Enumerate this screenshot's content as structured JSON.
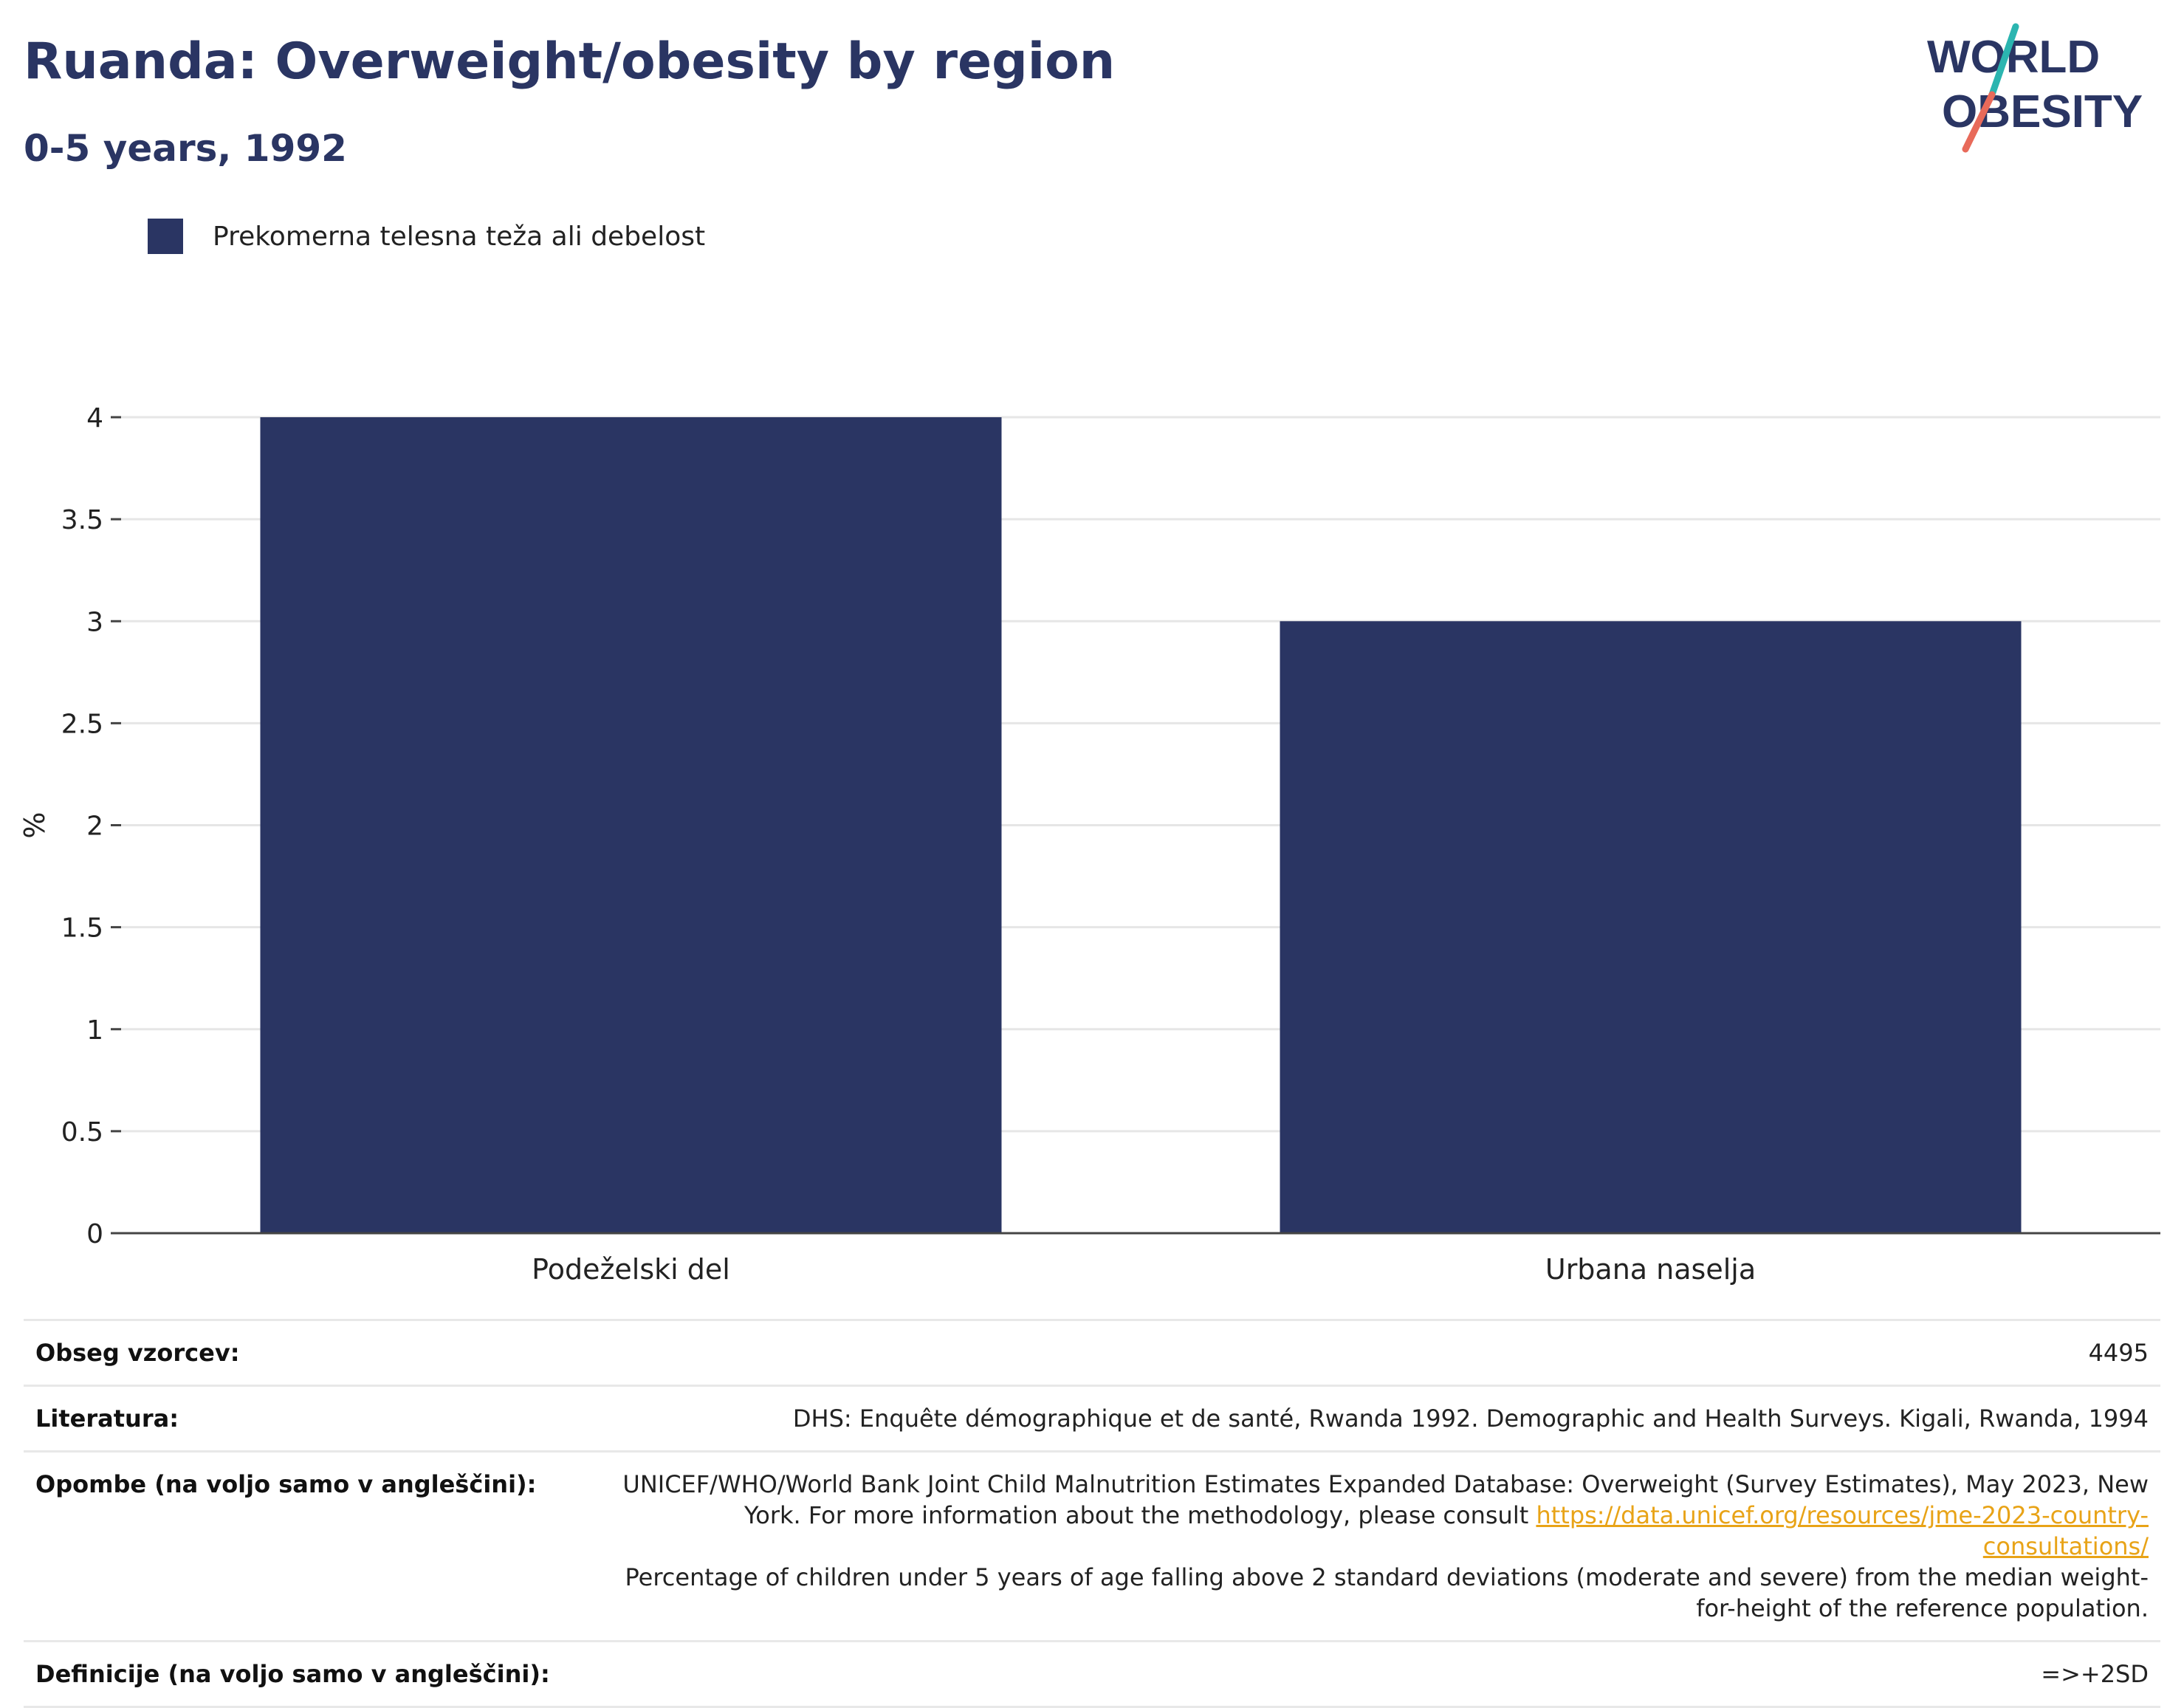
{
  "header": {
    "title": "Ruanda: Overweight/obesity by region",
    "subtitle": "0-5 years, 1992"
  },
  "logo": {
    "line1": "WORLD",
    "line2": "OBESITY",
    "accent_colors": [
      "#2bb5b0",
      "#e86a5a"
    ]
  },
  "legend": {
    "label": "Prekomerna telesna teža ali debelost",
    "color": "#2a3563"
  },
  "chart_data": {
    "type": "bar",
    "categories": [
      "Podeželski del",
      "Urbana naselja"
    ],
    "series": [
      {
        "name": "Prekomerna telesna teža ali debelost",
        "values": [
          4.0,
          3.0
        ],
        "color": "#2a3563"
      }
    ],
    "ylabel": "%",
    "ylim": [
      0,
      4
    ],
    "yticks": [
      "0",
      "0.5",
      "1",
      "1.5",
      "2",
      "2.5",
      "3",
      "3.5",
      "4"
    ],
    "grid": true
  },
  "info": {
    "sample_label": "Obseg vzorcev:",
    "sample_value": "4495",
    "literature_label": "Literatura:",
    "literature_value": "DHS: Enquête démographique et de santé, Rwanda 1992. Demographic and Health Surveys. Kigali, Rwanda, 1994",
    "notes_label": "Opombe (na voljo samo v angleščini):",
    "notes_text1": "UNICEF/WHO/World Bank Joint Child Malnutrition Estimates Expanded Database: Overweight (Survey Estimates), May 2023, New York. For more information about the methodology, please consult",
    "notes_link": "https://data.unicef.org/resources/jme-2023-country-consultations/",
    "notes_text2": "Percentage of children under 5 years of age falling above 2 standard deviations (moderate and severe) from the median weight-for-height of the reference population.",
    "definitions_label": "Definicije (na voljo samo v angleščini):",
    "definitions_value": "=>+2SD",
    "link_color": "#e8a317"
  }
}
